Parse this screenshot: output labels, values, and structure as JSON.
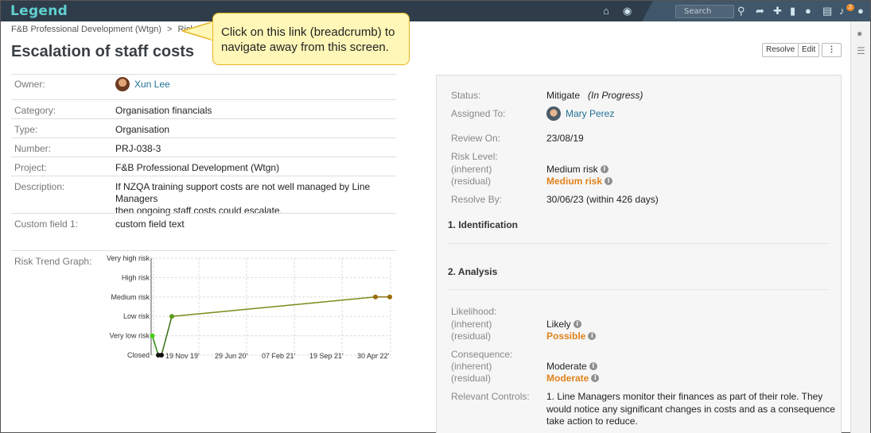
{
  "app": {
    "logo": "Legend"
  },
  "topbar": {
    "search_placeholder": "Search",
    "icons": [
      "home-icon",
      "globe-icon",
      "search-icon",
      "share-icon",
      "plus-icon",
      "bookmark-icon",
      "chat-icon",
      "document-icon",
      "bell-icon",
      "user-icon"
    ],
    "notification_count": "2"
  },
  "breadcrumb": {
    "parent": "F&B Professional Development (Wtgn)",
    "separator": ">",
    "current": "Risks"
  },
  "page": {
    "title": "Escalation of staff costs"
  },
  "callout": {
    "text": "Click on this link (breadcrumb) to navigate away from this screen."
  },
  "actions": {
    "resolve": "Resolve",
    "edit": "Edit",
    "more": "⋮"
  },
  "details": {
    "owner": {
      "label": "Owner:",
      "value": "Xun Lee"
    },
    "category": {
      "label": "Category:",
      "value": "Organisation financials"
    },
    "type": {
      "label": "Type:",
      "value": "Organisation"
    },
    "number": {
      "label": "Number:",
      "value": "PRJ-038-3"
    },
    "project": {
      "label": "Project:",
      "value": "F&B Professional Development (Wtgn)"
    },
    "description": {
      "label": "Description:",
      "line1": "If NZQA training support costs are not well managed by Line Managers",
      "line2": "then ongoing staff costs could escalate."
    },
    "custom1": {
      "label": "Custom field 1:",
      "value": "custom field text"
    },
    "trend": {
      "label": "Risk Trend Graph:"
    }
  },
  "status_panel": {
    "status": {
      "label": "Status:",
      "value": "Mitigate",
      "note": "(In Progress)"
    },
    "assigned": {
      "label": "Assigned To:",
      "value": "Mary Perez"
    },
    "review": {
      "label": "Review On:",
      "value": "23/08/19"
    },
    "risk_level": {
      "label": "Risk Level:",
      "inherent_label": "(inherent)",
      "residual_label": "(residual)",
      "inherent": "Medium risk",
      "residual": "Medium risk"
    },
    "resolve_by": {
      "label": "Resolve By:",
      "value": "30/06/23 (within 426 days)"
    },
    "section1": "1. Identification",
    "section2": "2. Analysis",
    "likelihood": {
      "label": "Likelihood:",
      "inherent_label": "(inherent)",
      "residual_label": "(residual)",
      "inherent": "Likely",
      "residual": "Possible"
    },
    "consequence": {
      "label": "Consequence:",
      "inherent_label": "(inherent)",
      "residual_label": "(residual)",
      "inherent": "Moderate",
      "residual": "Moderate"
    },
    "controls": {
      "label": "Relevant Controls:",
      "line1": "1. Line Managers monitor their finances as part of their role. They",
      "line2": "would notice any significant changes in costs and as a consequence",
      "line3": "take action to reduce."
    }
  },
  "colors": {
    "accent": "#1f6f95",
    "warning": "#e0821b",
    "topbar": "#2f3c4a",
    "logo": "#5fd0cf"
  },
  "chart_data": {
    "type": "line",
    "y_categories": [
      "Closed",
      "Very low risk",
      "Low risk",
      "Medium risk",
      "High risk",
      "Very high risk"
    ],
    "x_tick_labels": [
      "19 Nov 19'",
      "29 Jun 20'",
      "07 Feb 21'",
      "19 Sep 21'",
      "30 Apr 22'"
    ],
    "series": [
      {
        "values": [
          1,
          0,
          0,
          2,
          3,
          3
        ]
      }
    ],
    "grid": true
  }
}
